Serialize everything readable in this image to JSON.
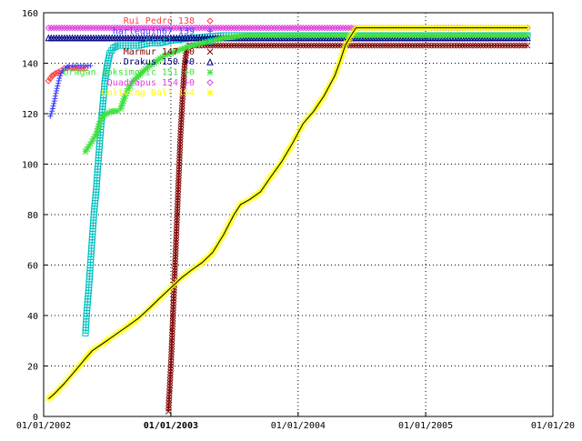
{
  "chart_data": {
    "type": "line",
    "xlim": [
      "2002-01-01",
      "2006-01-01"
    ],
    "ylim": [
      0,
      160
    ],
    "grid": true,
    "legend_position": "top-left-inside",
    "x_ticks": [
      {
        "value": "2002-01-01",
        "label": "01/01/2002",
        "bold": false
      },
      {
        "value": "2003-01-01",
        "label": "01/01/2003",
        "bold": true
      },
      {
        "value": "2004-01-01",
        "label": "01/01/2004",
        "bold": false
      },
      {
        "value": "2005-01-01",
        "label": "01/01/2005",
        "bold": false
      },
      {
        "value": "2006-01-01",
        "label": "01/01/20",
        "bold": false
      }
    ],
    "y_ticks": [
      0,
      20,
      40,
      60,
      80,
      100,
      120,
      140,
      160
    ],
    "series": [
      {
        "name": "Rui Pedro 138",
        "color": "#ff4040",
        "marker": "diamond",
        "points": [
          [
            "2002-01-15",
            133
          ],
          [
            "2002-01-25",
            135
          ],
          [
            "2002-02-05",
            136
          ],
          [
            "2002-02-20",
            137
          ],
          [
            "2002-03-01",
            138
          ],
          [
            "2002-03-10",
            138
          ],
          [
            "2002-03-20",
            138
          ],
          [
            "2002-04-01",
            138
          ],
          [
            "2002-04-15",
            138
          ],
          [
            "2002-05-01",
            138
          ]
        ]
      },
      {
        "name": "harlequin67 139",
        "color": "#4040ff",
        "marker": "plus",
        "points": [
          [
            "2002-01-20",
            119
          ],
          [
            "2002-01-25",
            121
          ],
          [
            "2002-02-01",
            125
          ],
          [
            "2002-02-05",
            128
          ],
          [
            "2002-02-10",
            131
          ],
          [
            "2002-02-15",
            134
          ],
          [
            "2002-02-20",
            136
          ],
          [
            "2002-02-25",
            137
          ],
          [
            "2002-03-05",
            138
          ],
          [
            "2002-03-15",
            139
          ],
          [
            "2002-03-25",
            139
          ],
          [
            "2002-04-10",
            139
          ],
          [
            "2002-04-25",
            139
          ],
          [
            "2002-05-15",
            139
          ]
        ]
      },
      {
        "name": "Gretl ...",
        "color": "#00c0c0",
        "marker": "square",
        "points": [
          [
            "2002-05-01",
            33
          ],
          [
            "2002-05-05",
            42
          ],
          [
            "2002-05-10",
            50
          ],
          [
            "2002-05-15",
            60
          ],
          [
            "2002-05-20",
            70
          ],
          [
            "2002-05-25",
            80
          ],
          [
            "2002-06-01",
            90
          ],
          [
            "2002-06-05",
            98
          ],
          [
            "2002-06-10",
            107
          ],
          [
            "2002-06-15",
            116
          ],
          [
            "2002-06-20",
            124
          ],
          [
            "2002-06-25",
            132
          ],
          [
            "2002-07-01",
            138
          ],
          [
            "2002-07-10",
            144
          ],
          [
            "2002-07-20",
            146
          ],
          [
            "2002-08-01",
            147
          ],
          [
            "2002-09-01",
            147
          ],
          [
            "2002-10-01",
            147
          ],
          [
            "2002-11-01",
            148
          ],
          [
            "2002-12-01",
            148
          ],
          [
            "2003-01-01",
            149
          ],
          [
            "2003-03-01",
            150
          ],
          [
            "2003-06-01",
            151
          ],
          [
            "2003-09-01",
            151
          ],
          [
            "2003-12-01",
            151
          ],
          [
            "2004-03-01",
            151
          ],
          [
            "2004-06-01",
            151
          ],
          [
            "2004-09-01",
            151
          ],
          [
            "2004-12-01",
            151
          ],
          [
            "2005-03-01",
            151
          ],
          [
            "2005-06-01",
            151
          ],
          [
            "2005-09-01",
            151
          ],
          [
            "2005-10-20",
            151
          ]
        ]
      },
      {
        "name": "Marmur 147 +0",
        "color": "#800000",
        "marker": "cross",
        "points": [
          [
            "2002-12-25",
            2
          ],
          [
            "2002-12-28",
            10
          ],
          [
            "2003-01-01",
            20
          ],
          [
            "2003-01-04",
            30
          ],
          [
            "2003-01-07",
            40
          ],
          [
            "2003-01-10",
            50
          ],
          [
            "2003-01-13",
            60
          ],
          [
            "2003-01-16",
            70
          ],
          [
            "2003-01-19",
            80
          ],
          [
            "2003-01-22",
            90
          ],
          [
            "2003-01-25",
            100
          ],
          [
            "2003-01-28",
            110
          ],
          [
            "2003-02-01",
            120
          ],
          [
            "2003-02-05",
            130
          ],
          [
            "2003-02-10",
            140
          ],
          [
            "2003-02-15",
            145
          ],
          [
            "2003-02-25",
            147
          ],
          [
            "2003-04-01",
            147
          ],
          [
            "2003-07-01",
            147
          ],
          [
            "2003-10-01",
            147
          ],
          [
            "2004-01-01",
            147
          ],
          [
            "2004-04-01",
            147
          ],
          [
            "2004-07-01",
            147
          ],
          [
            "2004-10-01",
            147
          ],
          [
            "2005-01-01",
            147
          ],
          [
            "2005-04-01",
            147
          ],
          [
            "2005-07-01",
            147
          ],
          [
            "2005-10-20",
            147
          ]
        ]
      },
      {
        "name": "Drakus 150 +0",
        "color": "#000080",
        "marker": "triangle",
        "points": [
          [
            "2002-01-15",
            150
          ],
          [
            "2002-04-01",
            150
          ],
          [
            "2002-07-01",
            150
          ],
          [
            "2002-10-01",
            150
          ],
          [
            "2003-01-01",
            150
          ],
          [
            "2003-04-01",
            150
          ],
          [
            "2003-07-01",
            150
          ],
          [
            "2003-10-01",
            150
          ],
          [
            "2004-01-01",
            150
          ],
          [
            "2004-04-01",
            150
          ],
          [
            "2004-07-01",
            150
          ],
          [
            "2004-10-01",
            150
          ],
          [
            "2005-01-01",
            150
          ],
          [
            "2005-04-01",
            150
          ],
          [
            "2005-07-01",
            150
          ],
          [
            "2005-10-20",
            150
          ]
        ]
      },
      {
        "name": "Dragan Joksimovic 151 +0",
        "color": "#40e040",
        "marker": "asterisk",
        "points": [
          [
            "2002-05-01",
            105
          ],
          [
            "2002-05-10",
            107
          ],
          [
            "2002-05-20",
            109
          ],
          [
            "2002-06-01",
            112
          ],
          [
            "2002-06-10",
            116
          ],
          [
            "2002-06-20",
            119
          ],
          [
            "2002-07-01",
            120
          ],
          [
            "2002-07-15",
            121
          ],
          [
            "2002-08-01",
            121
          ],
          [
            "2002-08-10",
            122
          ],
          [
            "2002-08-20",
            126
          ],
          [
            "2002-09-01",
            130
          ],
          [
            "2002-09-15",
            133
          ],
          [
            "2002-10-01",
            135
          ],
          [
            "2002-10-15",
            137
          ],
          [
            "2002-11-01",
            139
          ],
          [
            "2002-11-15",
            140
          ],
          [
            "2002-12-01",
            142
          ],
          [
            "2002-12-15",
            143
          ],
          [
            "2003-01-01",
            144
          ],
          [
            "2003-01-20",
            145
          ],
          [
            "2003-02-10",
            146
          ],
          [
            "2003-03-01",
            147
          ],
          [
            "2003-04-01",
            148
          ],
          [
            "2003-05-01",
            149
          ],
          [
            "2003-06-01",
            150
          ],
          [
            "2003-08-01",
            151
          ],
          [
            "2003-11-01",
            151
          ],
          [
            "2004-03-01",
            151
          ],
          [
            "2004-07-01",
            151
          ],
          [
            "2004-11-01",
            151
          ],
          [
            "2005-03-01",
            151
          ],
          [
            "2005-07-01",
            151
          ],
          [
            "2005-10-20",
            151
          ]
        ]
      },
      {
        "name": "Quadrapus 154 +0",
        "color": "#e040e0",
        "marker": "diamond",
        "points": [
          [
            "2002-01-15",
            154
          ],
          [
            "2002-04-01",
            154
          ],
          [
            "2002-07-01",
            154
          ],
          [
            "2002-10-01",
            154
          ],
          [
            "2003-01-01",
            154
          ],
          [
            "2003-04-01",
            154
          ],
          [
            "2003-07-01",
            154
          ],
          [
            "2003-10-01",
            154
          ],
          [
            "2004-01-01",
            154
          ],
          [
            "2004-04-01",
            154
          ],
          [
            "2004-07-01",
            154
          ],
          [
            "2004-10-01",
            154
          ],
          [
            "2005-01-01",
            154
          ],
          [
            "2005-04-01",
            154
          ],
          [
            "2005-07-01",
            154
          ],
          [
            "2005-10-20",
            154
          ]
        ]
      },
      {
        "name": "Unliving Ball 154",
        "color": "#ffff00",
        "line_color": "#000000",
        "marker": "star",
        "points": [
          [
            "2002-01-15",
            7
          ],
          [
            "2002-02-01",
            9
          ],
          [
            "2002-03-01",
            13
          ],
          [
            "2002-04-01",
            18
          ],
          [
            "2002-05-01",
            23
          ],
          [
            "2002-05-20",
            26
          ],
          [
            "2002-06-10",
            28
          ],
          [
            "2002-07-01",
            30
          ],
          [
            "2002-08-01",
            33
          ],
          [
            "2002-09-01",
            36
          ],
          [
            "2002-10-01",
            39
          ],
          [
            "2002-11-01",
            43
          ],
          [
            "2002-12-01",
            47
          ],
          [
            "2003-01-01",
            51
          ],
          [
            "2003-02-01",
            55
          ],
          [
            "2003-03-01",
            58
          ],
          [
            "2003-04-01",
            61
          ],
          [
            "2003-05-01",
            65
          ],
          [
            "2003-06-01",
            72
          ],
          [
            "2003-07-01",
            80
          ],
          [
            "2003-07-20",
            84
          ],
          [
            "2003-08-15",
            86
          ],
          [
            "2003-09-15",
            89
          ],
          [
            "2003-10-15",
            95
          ],
          [
            "2003-11-15",
            101
          ],
          [
            "2003-12-15",
            108
          ],
          [
            "2004-01-15",
            116
          ],
          [
            "2004-02-15",
            121
          ],
          [
            "2004-03-15",
            127
          ],
          [
            "2004-04-15",
            135
          ],
          [
            "2004-05-01",
            141
          ],
          [
            "2004-05-15",
            147
          ],
          [
            "2004-06-01",
            151
          ],
          [
            "2004-06-15",
            154
          ],
          [
            "2004-08-01",
            154
          ],
          [
            "2004-11-01",
            154
          ],
          [
            "2005-02-01",
            154
          ],
          [
            "2005-05-01",
            154
          ],
          [
            "2005-08-01",
            154
          ],
          [
            "2005-10-20",
            154
          ]
        ]
      }
    ]
  }
}
